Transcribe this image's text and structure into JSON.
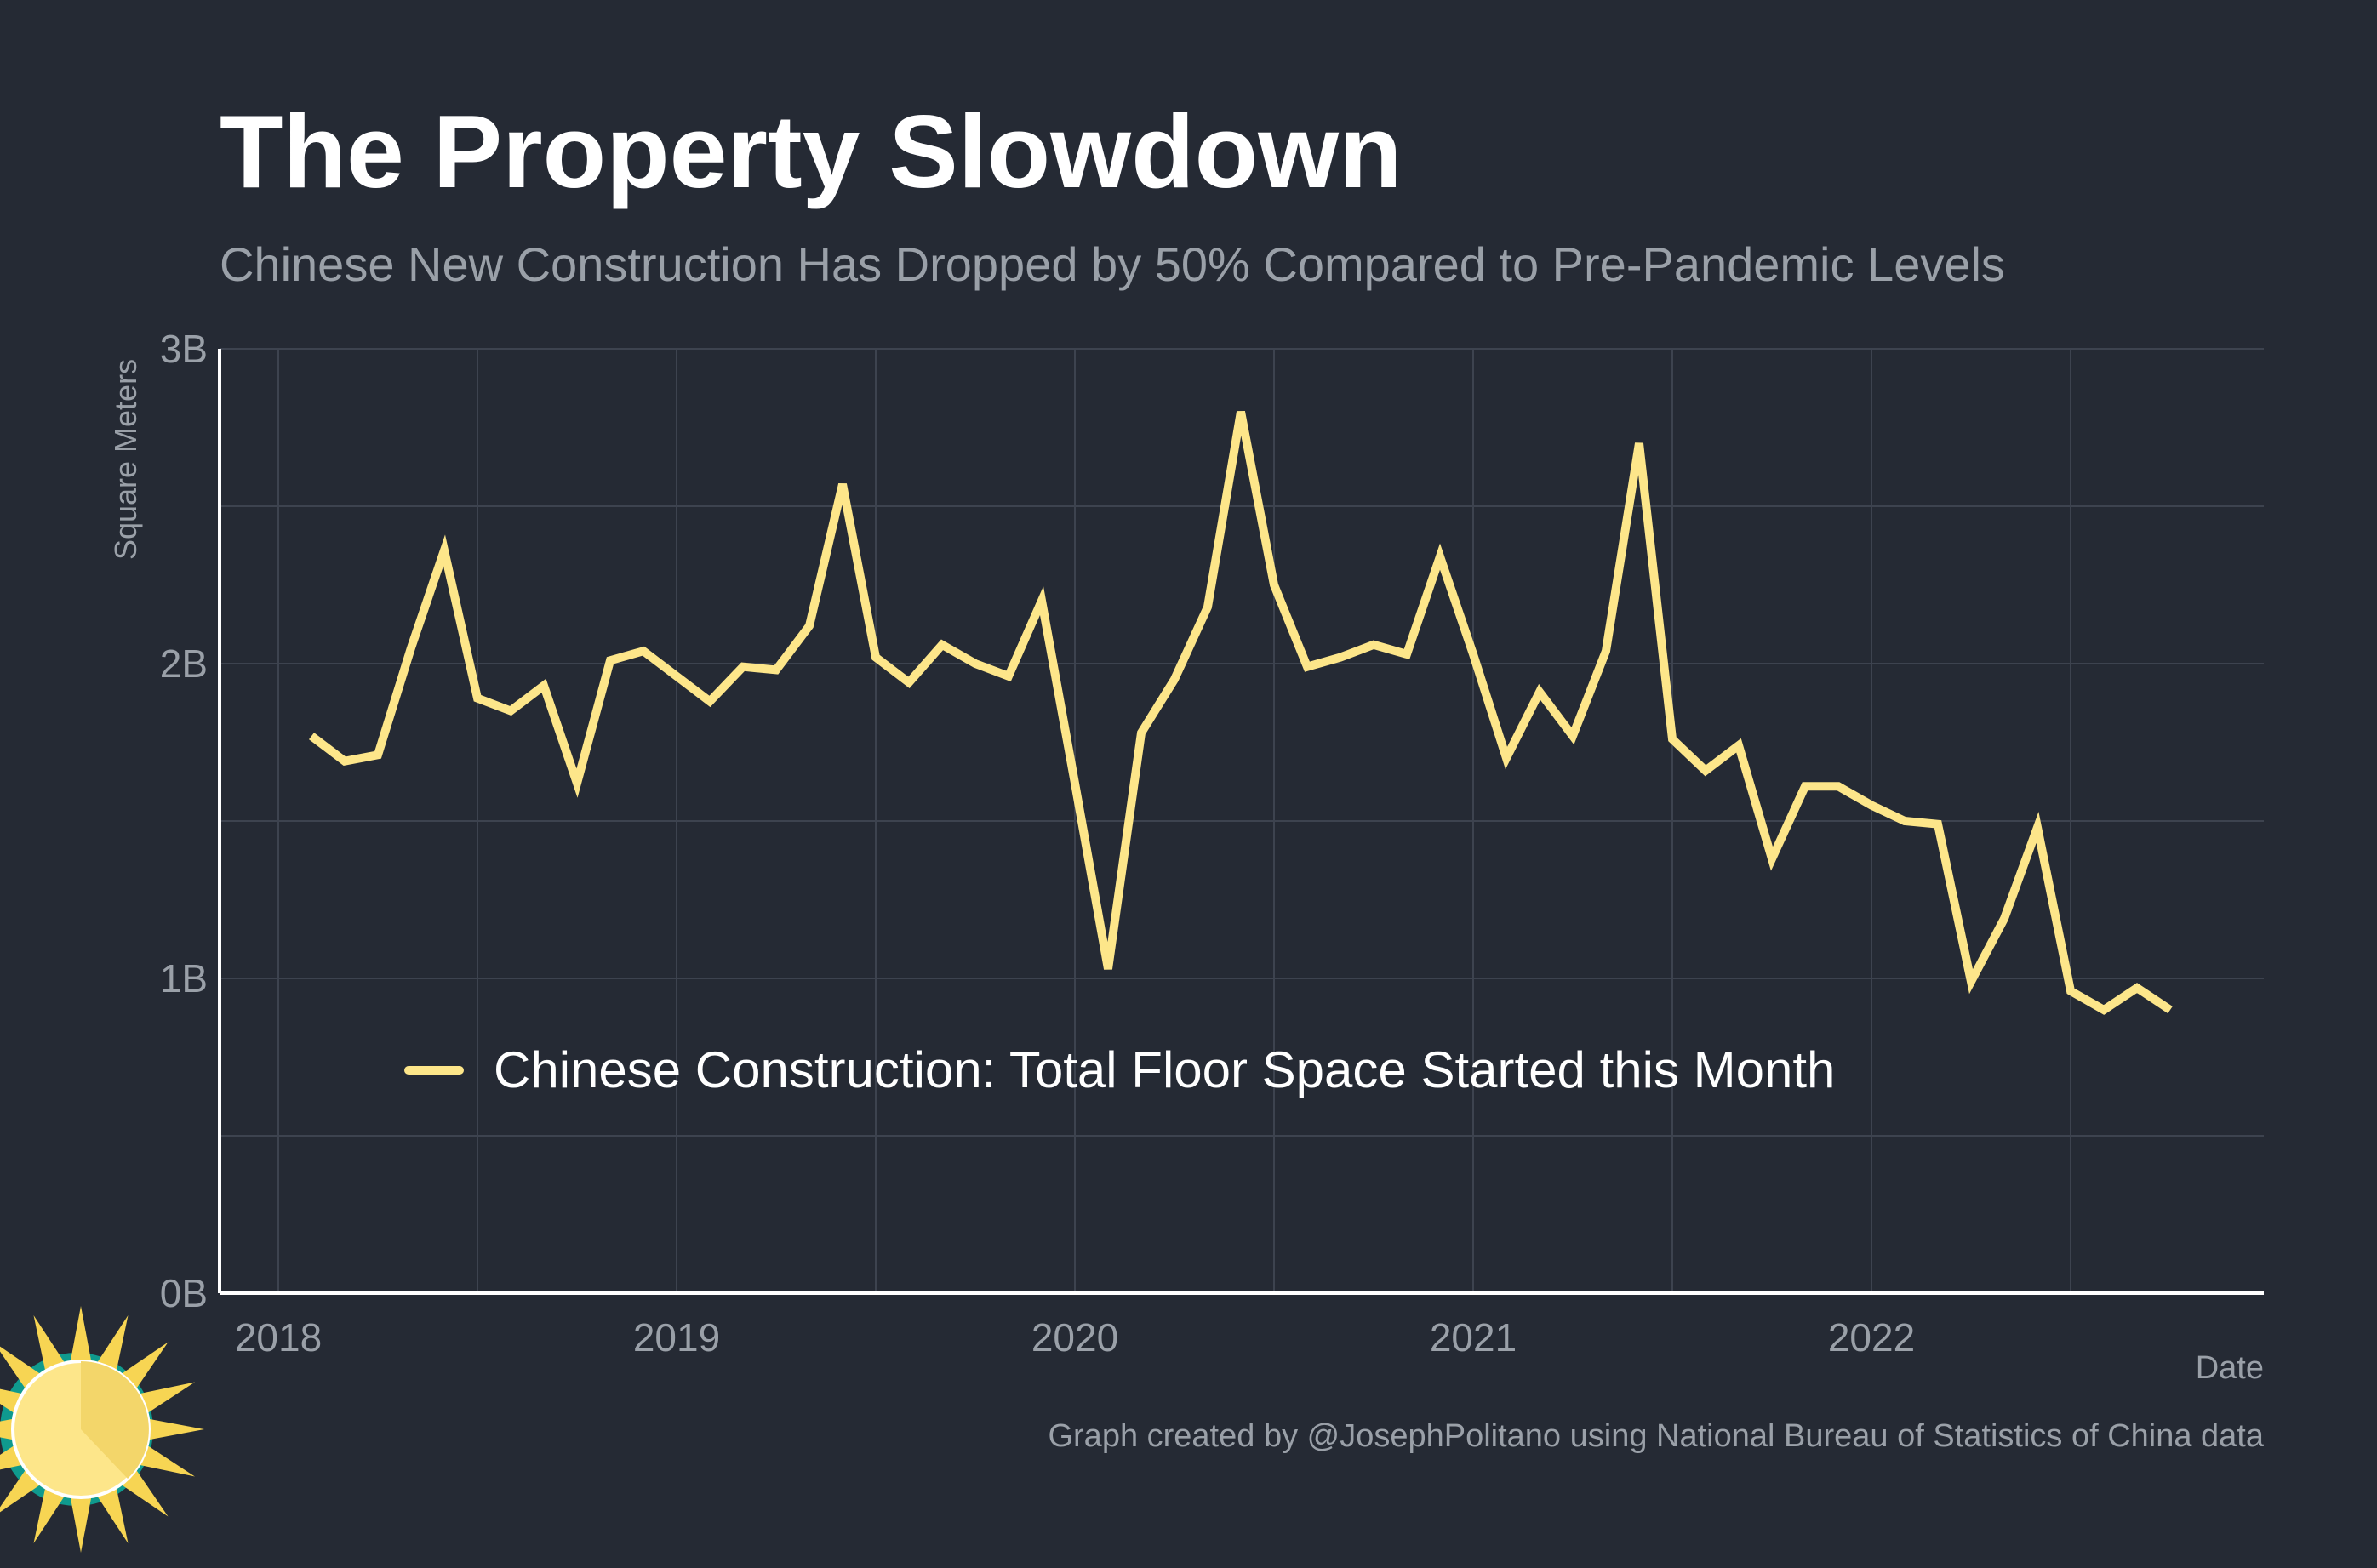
{
  "title": "The Property Slowdown",
  "subtitle": "Chinese New Construction Has Dropped by 50% Compared to Pre-Pandemic Levels",
  "caption": "Graph created by @JosephPolitano using National Bureau of Statistics of China data",
  "colors": {
    "background": "#252a34",
    "line": "#fde68a",
    "grid": "#3d434f",
    "axis": "#ffffff",
    "text_muted": "#9aa0a8",
    "title": "#ffffff"
  },
  "chart_data": {
    "type": "line",
    "xlabel": "Date",
    "ylabel": "Square Meters",
    "x_ticks": [
      "2018",
      "2019",
      "2020",
      "2021",
      "2022"
    ],
    "y_ticks": [
      "0B",
      "1B",
      "2B",
      "3B"
    ],
    "ylim": [
      0,
      3
    ],
    "xlim": [
      "2017-11",
      "2022-12"
    ],
    "grid": true,
    "legend_position": "bottom-center",
    "series": [
      {
        "name": "Chinese Construction: Total Floor Space Started this Month",
        "x": [
          "2018-02",
          "2018-03",
          "2018-04",
          "2018-05",
          "2018-06",
          "2018-07",
          "2018-08",
          "2018-09",
          "2018-10",
          "2018-11",
          "2018-12",
          "2019-01",
          "2019-02",
          "2019-03",
          "2019-04",
          "2019-05",
          "2019-06",
          "2019-07",
          "2019-08",
          "2019-09",
          "2019-10",
          "2019-11",
          "2019-12",
          "2020-01",
          "2020-02",
          "2020-03",
          "2020-04",
          "2020-05",
          "2020-06",
          "2020-07",
          "2020-08",
          "2020-09",
          "2020-10",
          "2020-11",
          "2020-12",
          "2021-01",
          "2021-02",
          "2021-03",
          "2021-04",
          "2021-05",
          "2021-06",
          "2021-07",
          "2021-08",
          "2021-09",
          "2021-10",
          "2021-11",
          "2021-12",
          "2022-01",
          "2022-02",
          "2022-03",
          "2022-04",
          "2022-05",
          "2022-06",
          "2022-07",
          "2022-08",
          "2022-09",
          "2022-10"
        ],
        "values": [
          1.77,
          1.69,
          1.71,
          2.05,
          2.36,
          1.89,
          1.85,
          1.93,
          1.62,
          2.01,
          2.04,
          1.96,
          1.88,
          1.99,
          1.98,
          2.12,
          2.57,
          2.02,
          1.94,
          2.06,
          2.0,
          1.96,
          2.2,
          1.62,
          1.03,
          1.78,
          1.95,
          2.18,
          2.8,
          2.25,
          1.99,
          2.02,
          2.06,
          2.03,
          2.34,
          2.03,
          1.7,
          1.91,
          1.77,
          2.04,
          2.7,
          1.76,
          1.66,
          1.74,
          1.38,
          1.61,
          1.61,
          1.55,
          1.5,
          1.49,
          0.99,
          1.19,
          1.48,
          0.96,
          0.9,
          0.97,
          0.9
        ]
      }
    ]
  }
}
